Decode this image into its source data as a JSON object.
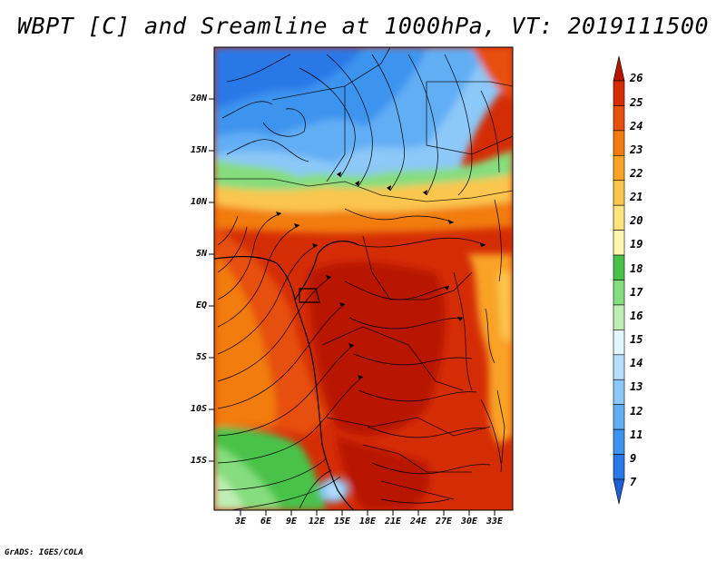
{
  "title": "WBPT [C] and Sreamline at 1000hPa, VT: 2019111500",
  "footer": "GrADS: IGES/COLA",
  "colors": {
    "palette": [
      "#1e5fd6",
      "#2a78e8",
      "#3c94ef",
      "#62aef5",
      "#8cc8f8",
      "#b6dffb",
      "#e2f6ff",
      "#bfeeb4",
      "#86dd7e",
      "#48c24a",
      "#fff4b0",
      "#fde37e",
      "#fbc64e",
      "#f9a326",
      "#f27b10",
      "#e6500a",
      "#d42d06",
      "#b81500"
    ],
    "streamline": "#000000",
    "border": "#000000"
  },
  "colorbar": {
    "labels": [
      "26",
      "25",
      "24",
      "23",
      "22",
      "21",
      "20",
      "19",
      "18",
      "17",
      "16",
      "15",
      "14",
      "13",
      "12",
      "11",
      "9",
      "7"
    ]
  },
  "axes": {
    "lat_labels": [
      "20N",
      "15N",
      "10N",
      "5N",
      "EQ",
      "5S",
      "10S",
      "15S"
    ],
    "lon_labels": [
      "3E",
      "6E",
      "9E",
      "12E",
      "15E",
      "18E",
      "21E",
      "24E",
      "27E",
      "30E",
      "33E"
    ]
  }
}
